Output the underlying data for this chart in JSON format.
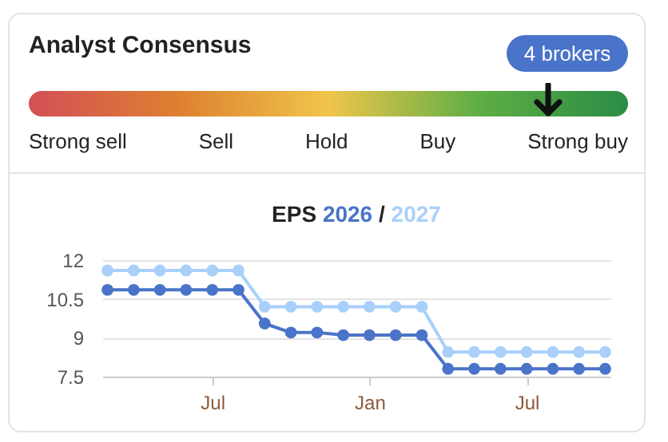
{
  "chart_data": [
    {
      "type": "other",
      "title": "Analyst Consensus",
      "annotations": [
        "4 brokers"
      ],
      "categories": [
        "Strong sell",
        "Sell",
        "Hold",
        "Buy",
        "Strong buy"
      ],
      "colors": [
        "#d34f56",
        "#de8030",
        "#f0c54a",
        "#5fae45",
        "#2a8c45"
      ]
    },
    {
      "type": "line",
      "title": "EPS",
      "annotations": [
        "/"
      ],
      "categories": [
        null,
        null,
        null,
        null,
        "Jul",
        null,
        null,
        null,
        null,
        null,
        "Jan",
        null,
        null,
        null,
        null,
        null,
        "Jul",
        null,
        null,
        null
      ],
      "series": [
        {
          "name": "2026",
          "color": "#4a74c9",
          "values": [
            10.85,
            10.85,
            10.85,
            10.85,
            10.85,
            10.85,
            9.55,
            9.2,
            9.2,
            9.1,
            9.1,
            9.1,
            9.1,
            7.8,
            7.8,
            7.8,
            7.8,
            7.8,
            7.8,
            7.8
          ]
        },
        {
          "name": "2027",
          "color": "#a9d0fb",
          "values": [
            11.6,
            11.6,
            11.6,
            11.6,
            11.6,
            11.6,
            10.2,
            10.2,
            10.2,
            10.2,
            10.2,
            10.2,
            10.2,
            8.45,
            8.45,
            8.45,
            8.45,
            8.45,
            8.45,
            8.45
          ]
        }
      ],
      "ylim": [
        7.5,
        12
      ],
      "yticks": [
        7.5,
        9,
        10.5,
        12
      ],
      "grid": "y",
      "marker": "circle",
      "line_style": "solid",
      "legend": "top"
    }
  ]
}
